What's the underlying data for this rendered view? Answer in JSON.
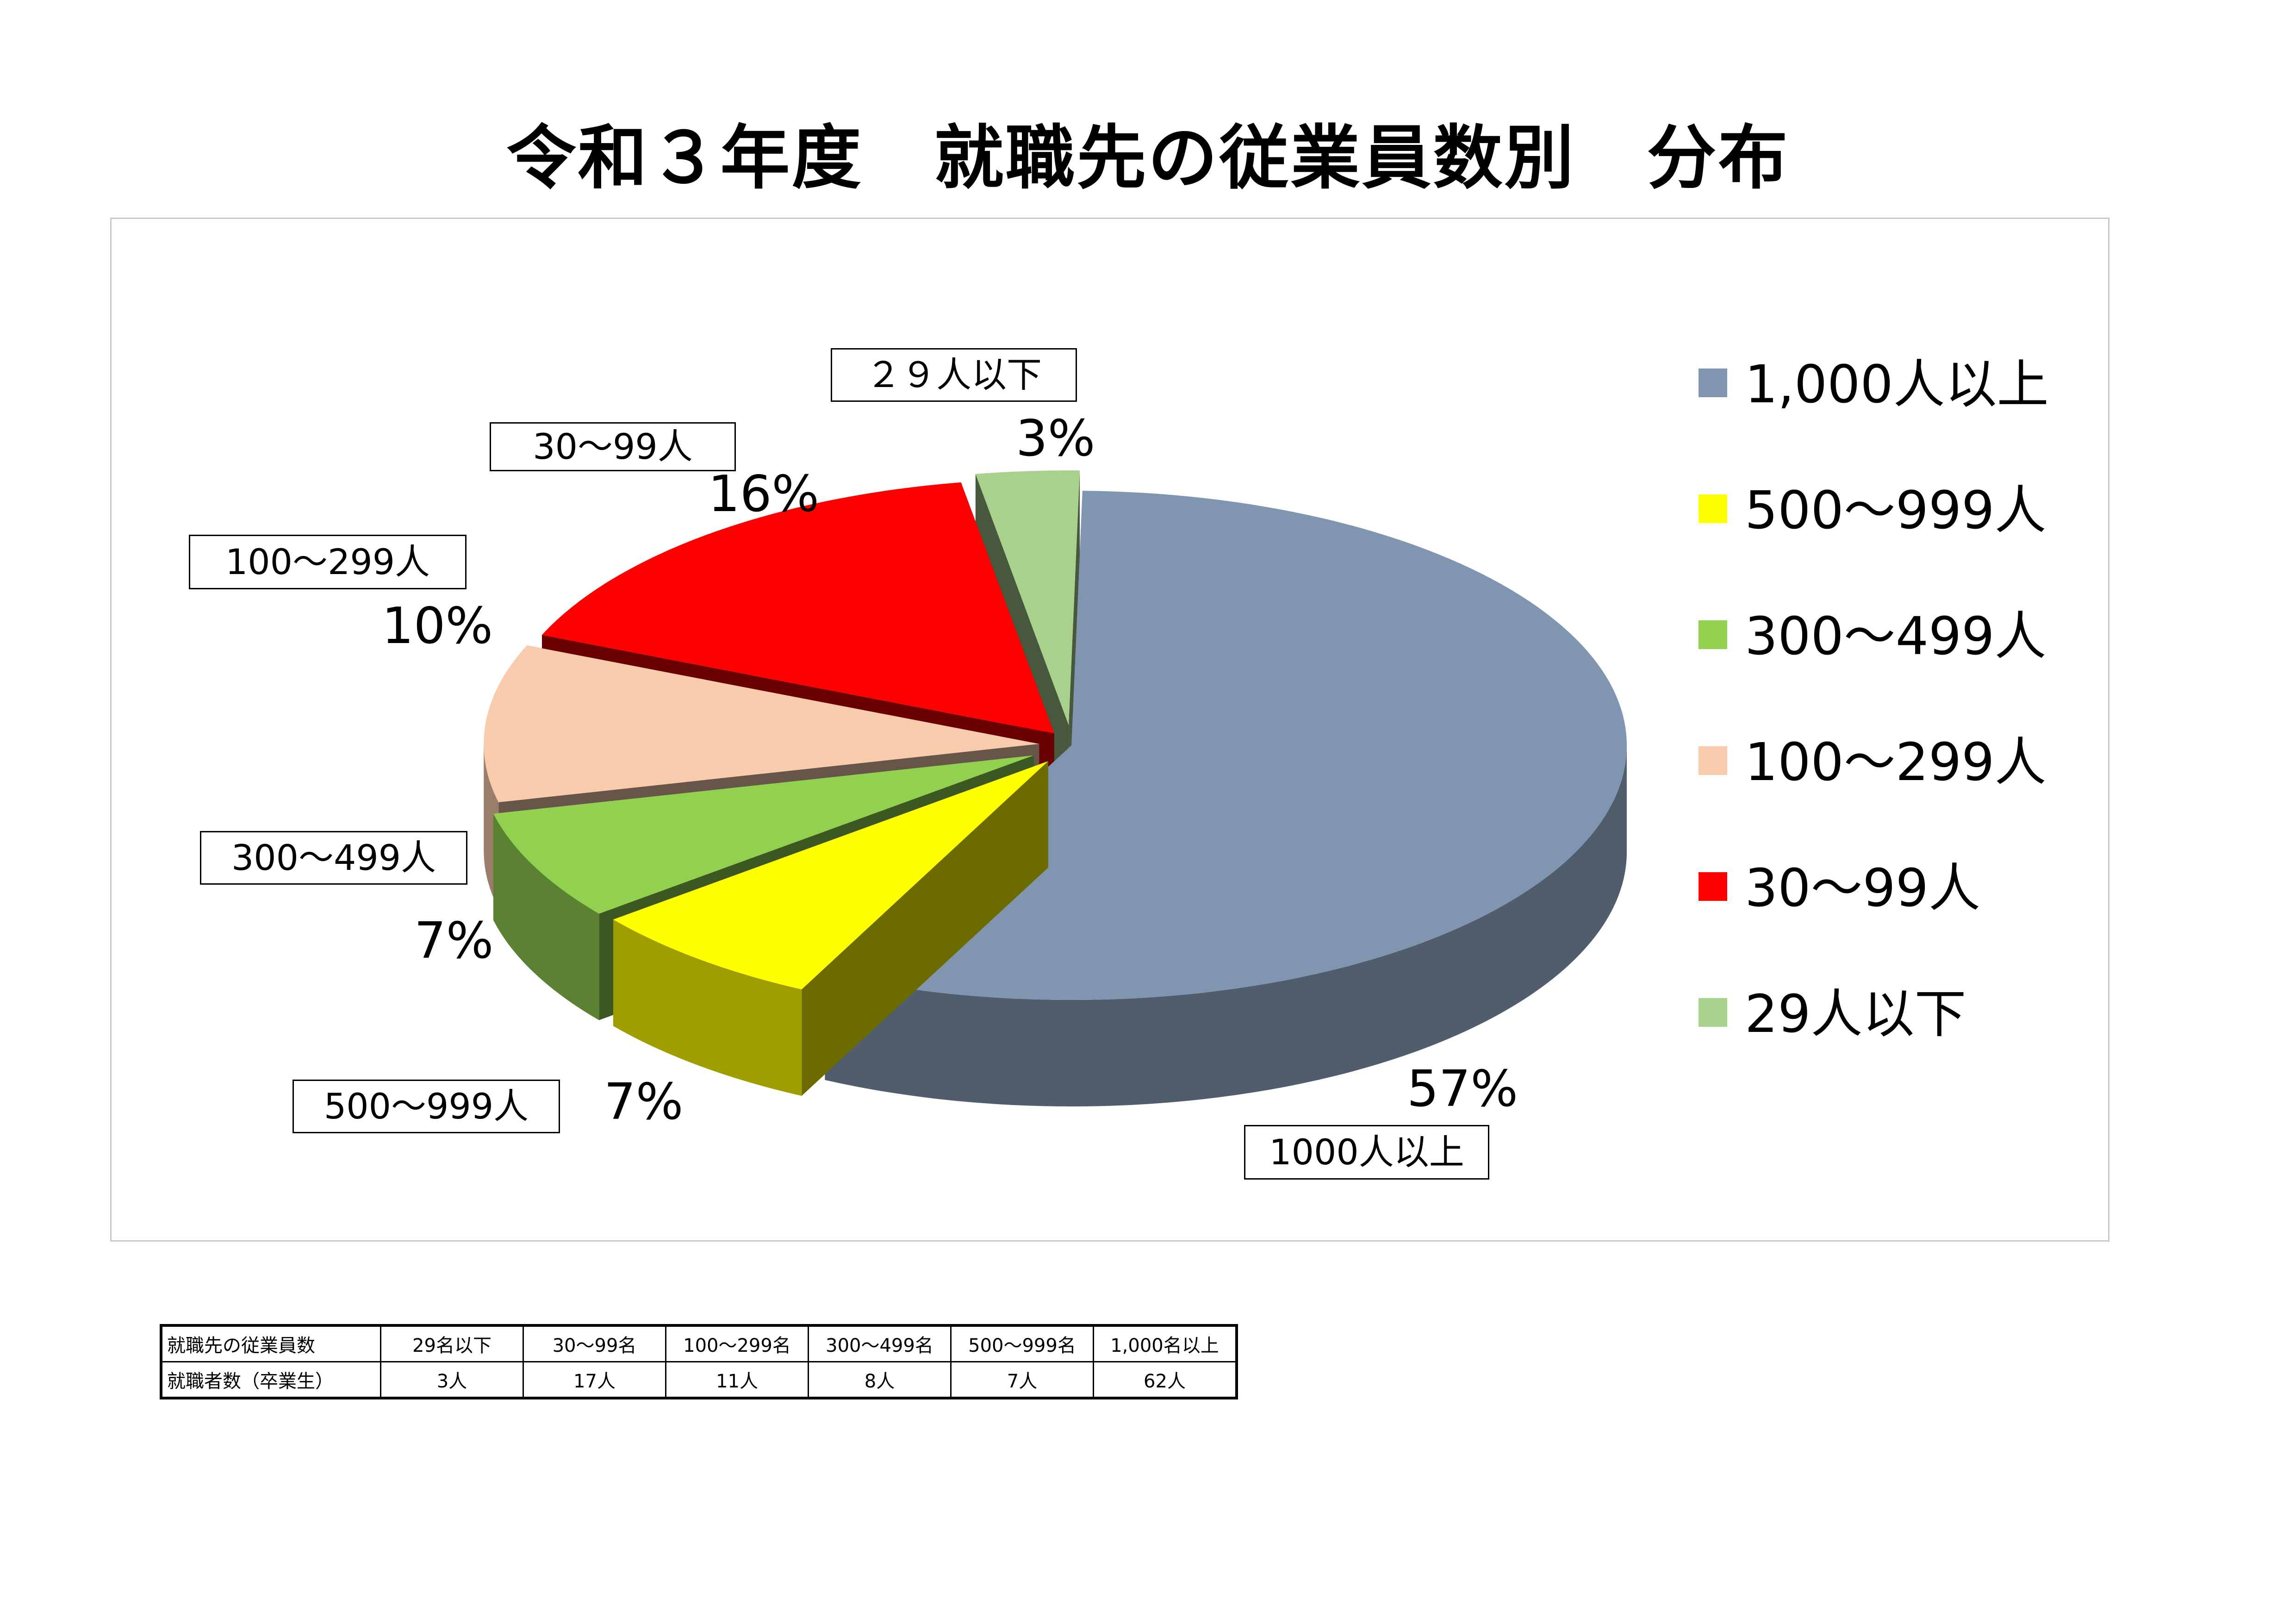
{
  "title": "令和３年度　就職先の従業員数別　分布",
  "chart_data": {
    "type": "pie",
    "title": "令和３年度　就職先の従業員数別　分布",
    "slices": [
      {
        "key": "s1000",
        "legend": "1,000人以上",
        "label": "1000人以上",
        "value": 57,
        "value_label": "57%",
        "color": "#8096b0"
      },
      {
        "key": "s500",
        "legend": "500～999人",
        "label": "500～999人",
        "value": 7,
        "value_label": "7%",
        "color": "#ffff00"
      },
      {
        "key": "s300",
        "legend": "300～499人",
        "label": "300～499人",
        "value": 7,
        "value_label": "7%",
        "color": "#92d050"
      },
      {
        "key": "s100",
        "legend": "100～299人",
        "label": "100～299人",
        "value": 10,
        "value_label": "10%",
        "color": "#f8cbad"
      },
      {
        "key": "s30",
        "legend": "30～99人",
        "label": "30～99人",
        "value": 16,
        "value_label": "16%",
        "color": "#ff0000"
      },
      {
        "key": "s29",
        "legend": "29人以下",
        "label": "２９人以下",
        "value": 3,
        "value_label": "3%",
        "color": "#a9d18e"
      }
    ],
    "legend_position": "right"
  },
  "table": {
    "header_label": "就職先の従業員数",
    "row_label": "就職者数（卒業生）",
    "columns": [
      "29名以下",
      "30～99名",
      "100～299名",
      "300～499名",
      "500～999名",
      "1,000名以上"
    ],
    "values": [
      "3人",
      "17人",
      "11人",
      "8人",
      "7人",
      "62人"
    ]
  }
}
